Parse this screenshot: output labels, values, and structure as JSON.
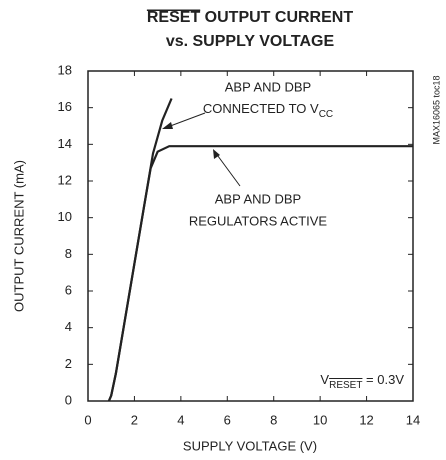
{
  "chart_data": {
    "type": "line",
    "title": [
      "RESET OUTPUT CURRENT",
      "vs. SUPPLY VOLTAGE"
    ],
    "xlabel": "SUPPLY VOLTAGE (V)",
    "ylabel": "OUTPUT CURRENT (mA)",
    "side_note": "MAX16065 toc18",
    "xlim": [
      0,
      14
    ],
    "xticks": [
      0,
      2,
      4,
      6,
      8,
      10,
      12,
      14
    ],
    "ylim": [
      0,
      18
    ],
    "yticks": [
      0,
      2,
      4,
      6,
      8,
      10,
      12,
      14,
      16,
      18
    ],
    "grid": false,
    "series": [
      {
        "color": "#222222",
        "x": [
          0.9,
          1.0,
          1.2,
          1.6,
          2.0,
          2.4,
          2.8,
          3.2,
          3.6
        ],
        "values": [
          0,
          0.3,
          1.5,
          4.5,
          7.5,
          10.5,
          13.5,
          15.3,
          16.5
        ]
      },
      {
        "color": "#222222",
        "x": [
          0.9,
          1.0,
          1.2,
          1.6,
          2.0,
          2.4,
          2.7,
          3.0,
          3.5,
          14.0
        ],
        "values": [
          0,
          0.3,
          1.5,
          4.5,
          7.5,
          10.5,
          12.7,
          13.6,
          13.9,
          13.9
        ]
      }
    ],
    "annotations": [
      {
        "lines": [
          "ABP AND DBP",
          "CONNECTED TO V"
        ],
        "sub": "CC"
      },
      {
        "lines": [
          "ABP AND DBP",
          "REGULATORS ACTIVE"
        ]
      },
      {
        "text": "V",
        "sub": "RESET",
        "after": " = 0.3V"
      }
    ]
  }
}
